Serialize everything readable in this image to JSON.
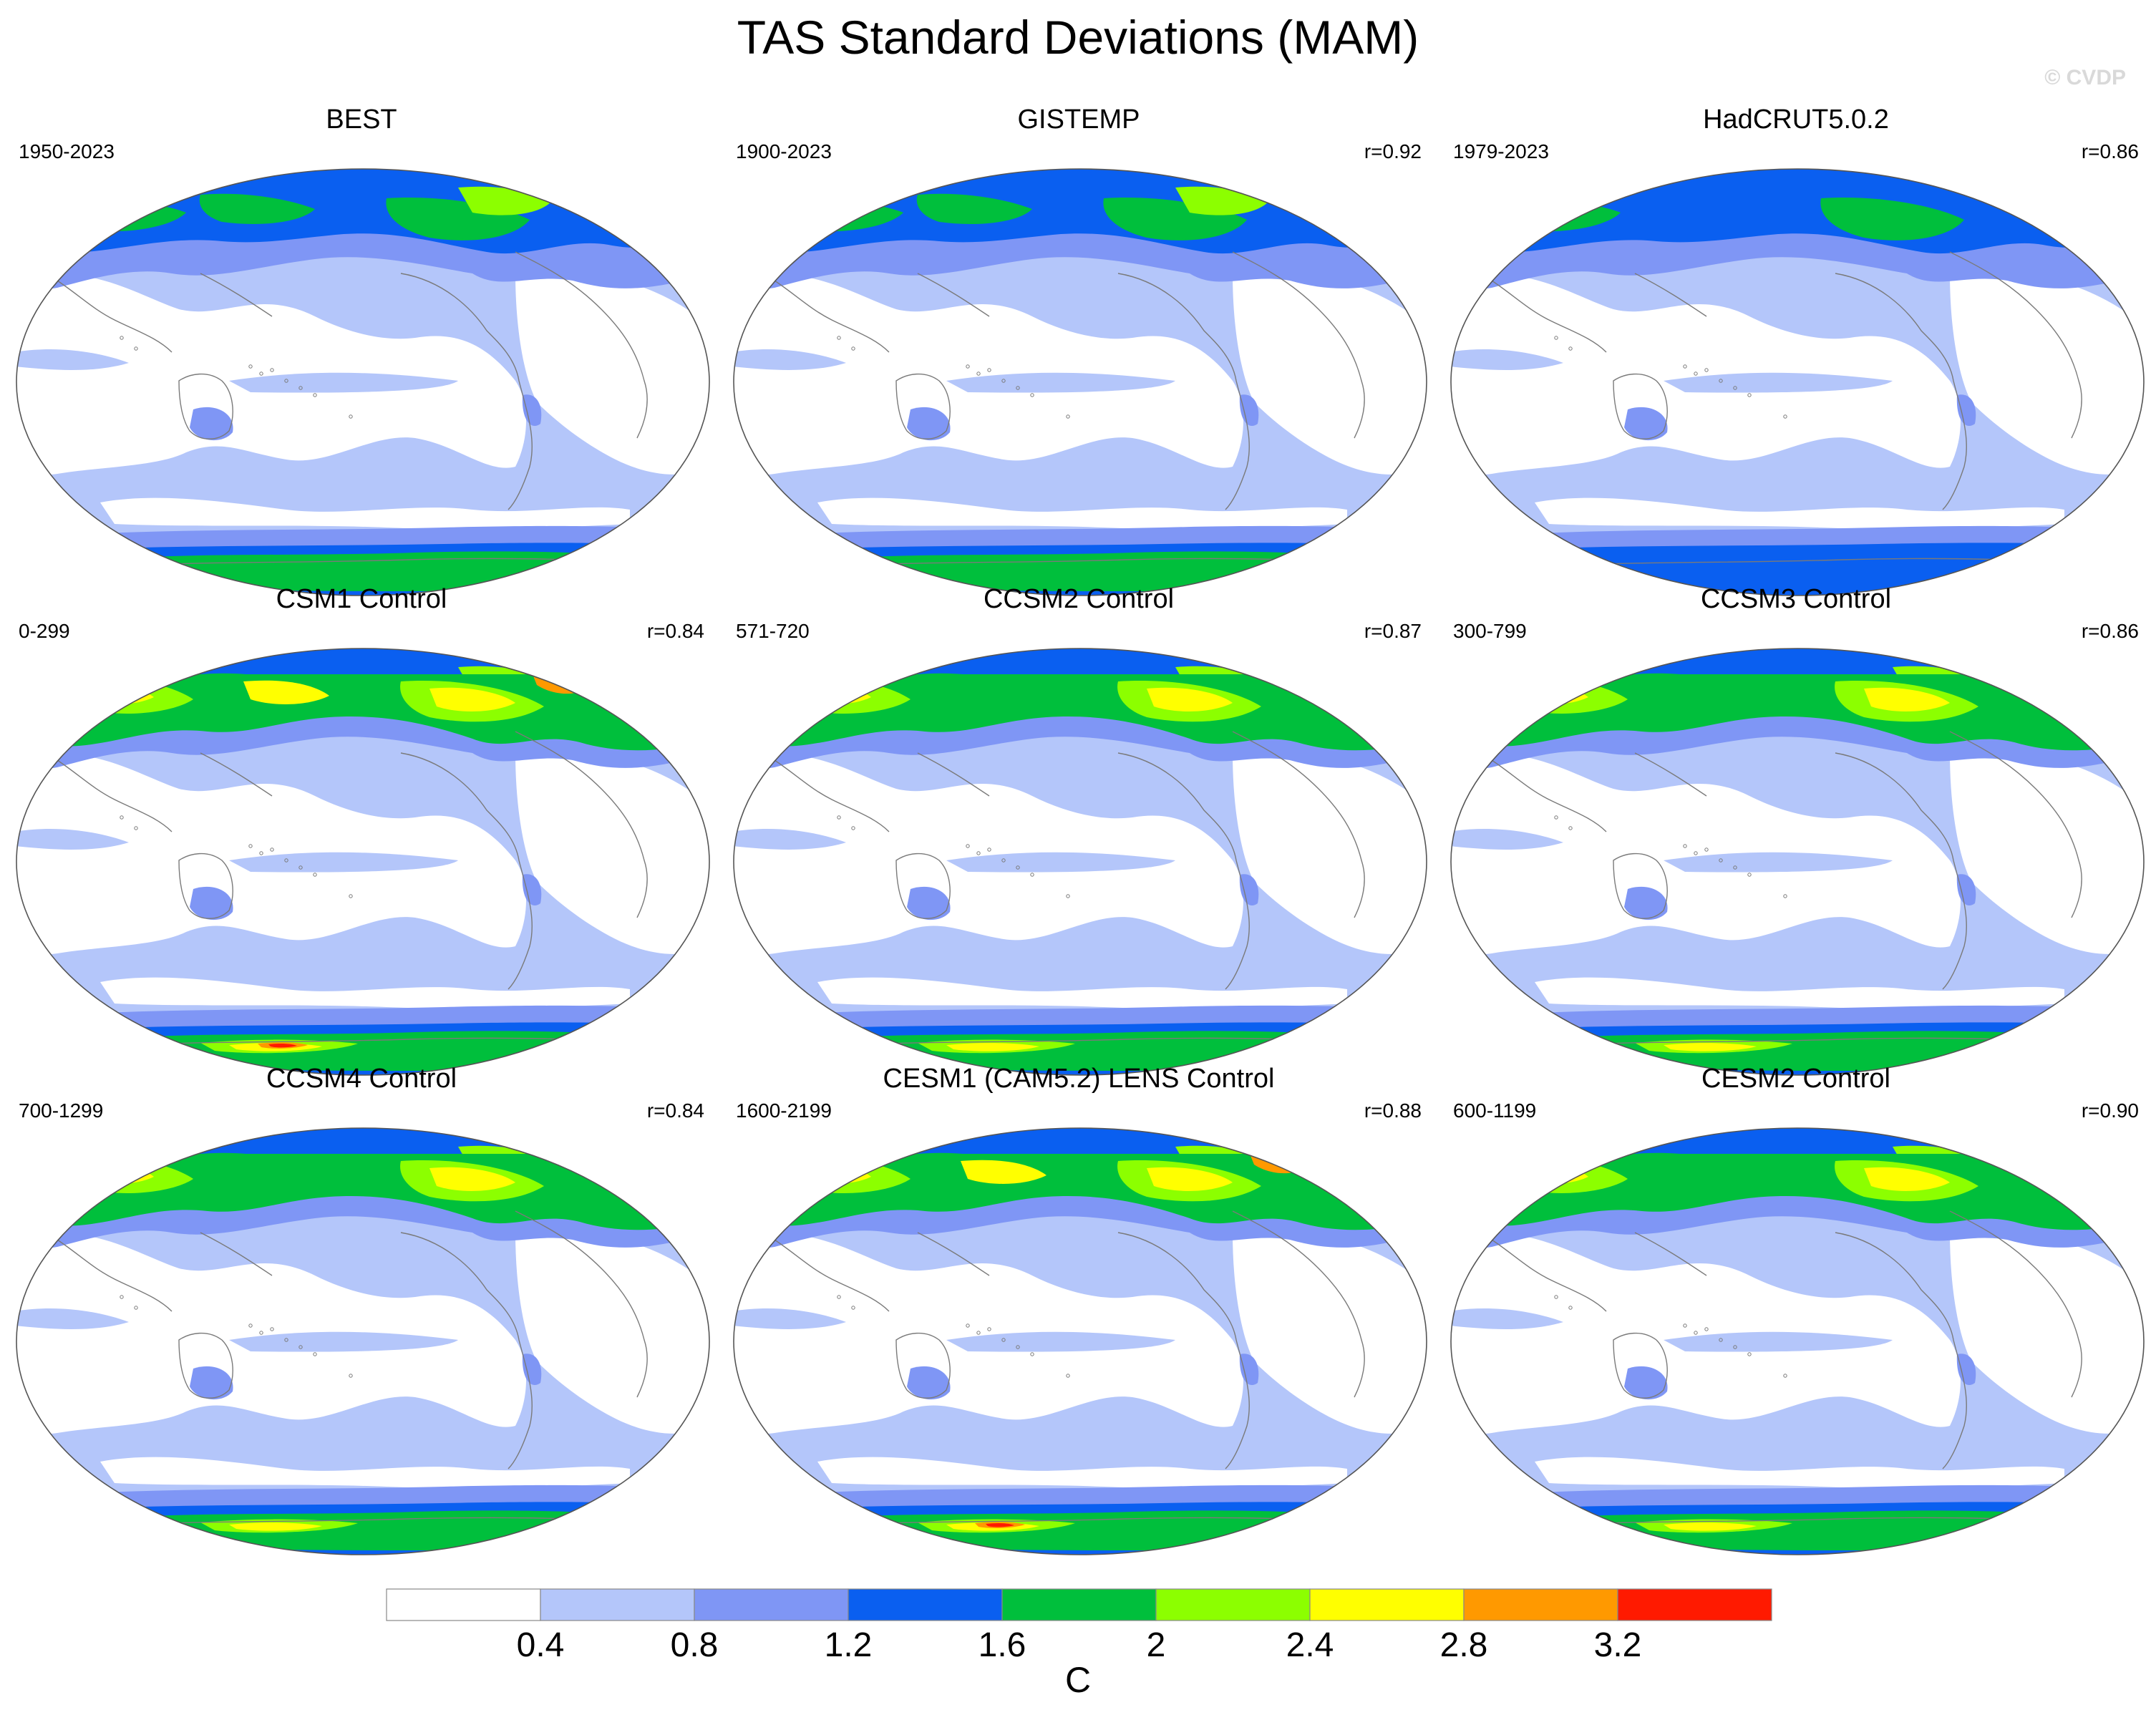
{
  "title": "TAS Standard Deviations (MAM)",
  "watermark": "© CVDP",
  "panels": [
    {
      "title": "BEST",
      "period": "1950-2023",
      "r": ""
    },
    {
      "title": "GISTEMP",
      "period": "1900-2023",
      "r": "r=0.92"
    },
    {
      "title": "HadCRUT5.0.2",
      "period": "1979-2023",
      "r": "r=0.86"
    },
    {
      "title": "CSM1 Control",
      "period": "0-299",
      "r": "r=0.84"
    },
    {
      "title": "CCSM2 Control",
      "period": "571-720",
      "r": "r=0.87"
    },
    {
      "title": "CCSM3 Control",
      "period": "300-799",
      "r": "r=0.86"
    },
    {
      "title": "CCSM4 Control",
      "period": "700-1299",
      "r": "r=0.84"
    },
    {
      "title": "CESM1 (CAM5.2) LENS Control",
      "period": "1600-2199",
      "r": "r=0.88"
    },
    {
      "title": "CESM2 Control",
      "period": "600-1199",
      "r": "r=0.90"
    }
  ],
  "colorbar": {
    "unit": "C",
    "ticks": [
      "0.4",
      "0.8",
      "1.2",
      "1.6",
      "2",
      "2.4",
      "2.8",
      "3.2"
    ],
    "colors": [
      "#ffffff",
      "#b4c6fa",
      "#7f96f5",
      "#0a5ff0",
      "#00bf3c",
      "#8cff00",
      "#ffff00",
      "#ff9900",
      "#ff1a00"
    ]
  },
  "map_style": {
    "ocean_low": "#ffffff",
    "level_1": "#b4c6fa",
    "level_2": "#7f96f5",
    "level_3": "#0a5ff0",
    "level_4": "#00bf3c",
    "level_5": "#8cff00",
    "level_6": "#ffff00",
    "level_7": "#ff9900",
    "level_8": "#ff1a00",
    "coast": "#7a7a7a"
  }
}
